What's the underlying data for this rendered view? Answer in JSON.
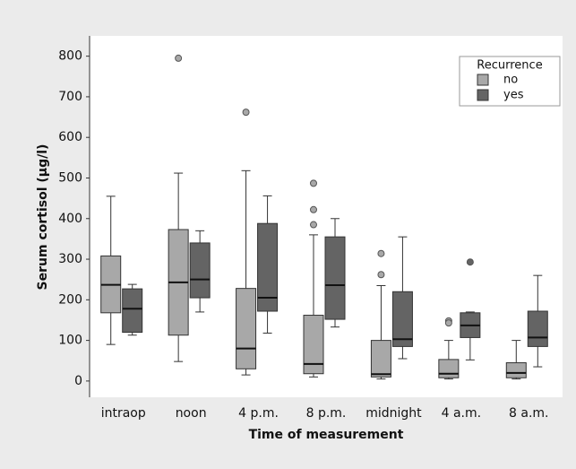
{
  "chart_data": {
    "type": "box",
    "x_label": "Time of measurement",
    "y_label": "Serum cortisol (µg/l)",
    "categories": [
      "intraop",
      "noon",
      "4 p.m.",
      "8 p.m.",
      "midnight",
      "4 a.m.",
      "8 a.m."
    ],
    "ylim": [
      -40,
      850
    ],
    "yticks": [
      0,
      100,
      200,
      300,
      400,
      500,
      600,
      700,
      800
    ],
    "legend_title": "Recurrence",
    "legend_position": "upper right",
    "series": [
      {
        "name": "no",
        "color": "#a8a8a8",
        "min": [
          90,
          48,
          15,
          10,
          5,
          5,
          5
        ],
        "q1": [
          168,
          113,
          30,
          18,
          10,
          8,
          8
        ],
        "median": [
          237,
          243,
          80,
          42,
          17,
          18,
          20
        ],
        "q3": [
          308,
          373,
          228,
          162,
          100,
          53,
          45
        ],
        "max": [
          455,
          512,
          518,
          360,
          235,
          100,
          100
        ],
        "outliers": [
          [],
          [
            795
          ],
          [
            662
          ],
          [
            487,
            422,
            385
          ],
          [
            314,
            262
          ],
          [
            148,
            143
          ],
          []
        ]
      },
      {
        "name": "yes",
        "color": "#646464",
        "min": [
          113,
          170,
          118,
          133,
          55,
          52,
          35
        ],
        "q1": [
          120,
          205,
          172,
          152,
          85,
          107,
          85
        ],
        "median": [
          178,
          250,
          205,
          236,
          103,
          137,
          107
        ],
        "q3": [
          227,
          340,
          388,
          355,
          220,
          168,
          172
        ],
        "max": [
          238,
          370,
          456,
          400,
          355,
          170,
          260
        ],
        "outliers": [
          [],
          [],
          [],
          [],
          [],
          [
            293
          ],
          []
        ]
      }
    ]
  }
}
